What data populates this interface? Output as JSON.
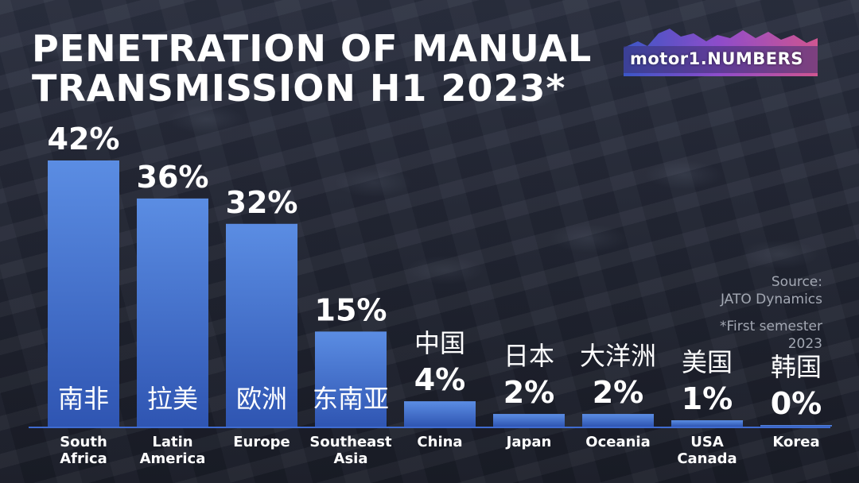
{
  "title": "PENETRATION OF MANUAL\nTRANSMISSION H1 2023*",
  "logo": {
    "text_a": "motor",
    "text_b": "1",
    "text_c": ".NUMBERS"
  },
  "source": {
    "line1": "Source:",
    "line2": "JATO Dynamics"
  },
  "footnote": {
    "line1": "*First semester",
    "line2": "2023"
  },
  "colors": {
    "bar_top": "#5b8de3",
    "bar_bottom": "#2f55b2",
    "text": "#ffffff",
    "axis": "#3f6bd0"
  },
  "chart_data": {
    "type": "bar",
    "title": "PENETRATION OF MANUAL TRANSMISSION H1 2023*",
    "ylim": [
      0,
      42
    ],
    "categories": [
      [
        "South",
        "Africa"
      ],
      [
        "Latin",
        "America"
      ],
      [
        "Europe"
      ],
      [
        "Southeast",
        "Asia"
      ],
      [
        "China"
      ],
      [
        "Japan"
      ],
      [
        "Oceania"
      ],
      [
        "USA",
        "Canada"
      ],
      [
        "Korea"
      ]
    ],
    "local_labels": [
      "南非",
      "拉美",
      "欧洲",
      "东南亚",
      "中国",
      "日本",
      "大洋洲",
      "美国",
      "韩国"
    ],
    "values": [
      42,
      36,
      32,
      15,
      4,
      2,
      2,
      1,
      0
    ],
    "value_labels": [
      "42%",
      "36%",
      "32%",
      "15%",
      "4%",
      "2%",
      "2%",
      "1%",
      "0%"
    ]
  }
}
